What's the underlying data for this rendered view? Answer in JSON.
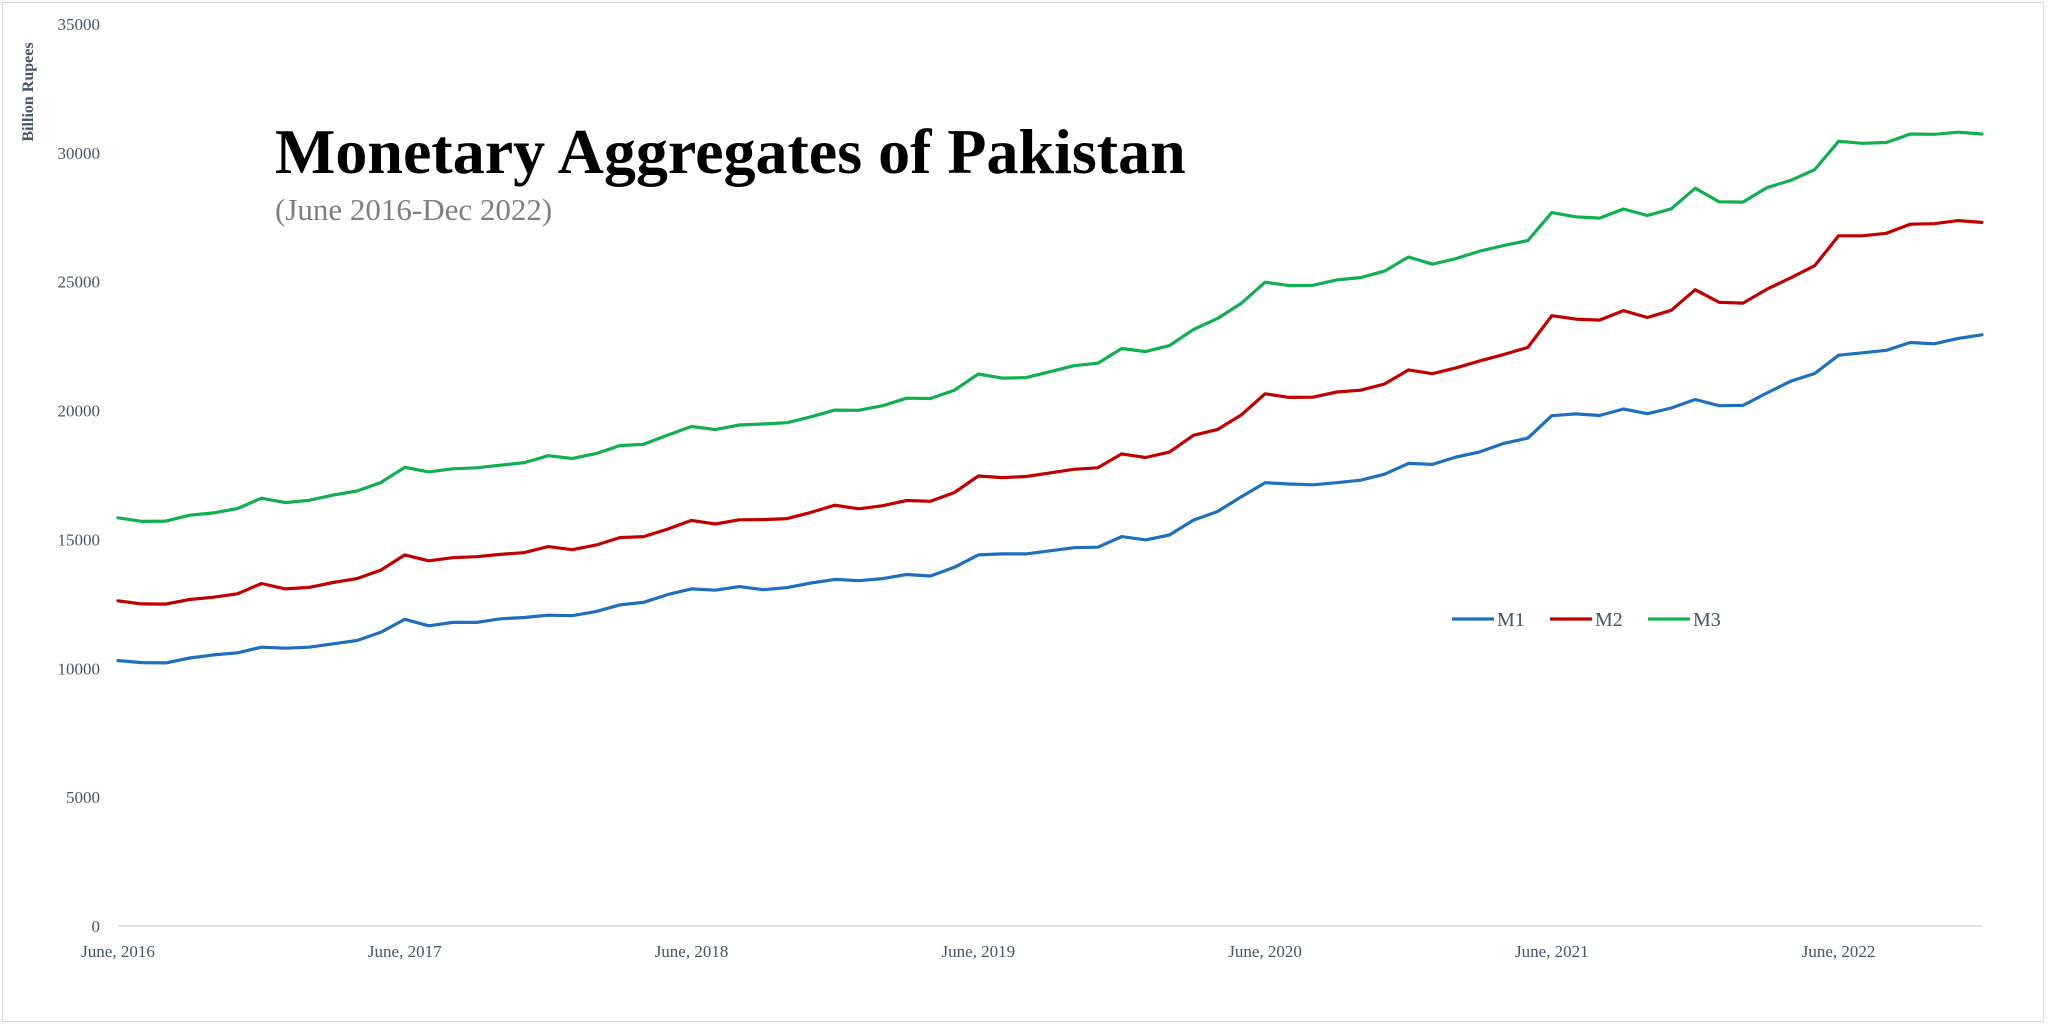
{
  "chart_data": {
    "type": "line",
    "title": "Monetary Aggregates of Pakistan",
    "subtitle": "(June 2016-Dec 2022)",
    "xlabel": "",
    "ylabel": "Billion Rupees",
    "ylim": [
      0,
      35000
    ],
    "yticks": [
      0,
      5000,
      10000,
      15000,
      20000,
      25000,
      30000,
      35000
    ],
    "xtick_labels": [
      "June, 2016",
      "June, 2017",
      "June, 2018",
      "June, 2019",
      "June, 2020",
      "June, 2021",
      "June, 2022"
    ],
    "x_start": "June, 2016",
    "x_end": "Dec, 2022",
    "frequency": "monthly",
    "grid": false,
    "legend_position": "center-right",
    "colors": {
      "M1": "#1f6fbf",
      "M2": "#c00000",
      "M3": "#10b050"
    },
    "series": [
      {
        "name": "M1",
        "values": [
          10300,
          10220,
          10210,
          10400,
          10520,
          10600,
          10820,
          10780,
          10820,
          10950,
          11080,
          11400,
          11900,
          11650,
          11780,
          11780,
          11920,
          11970,
          12060,
          12040,
          12200,
          12460,
          12560,
          12860,
          13080,
          13030,
          13170,
          13050,
          13130,
          13310,
          13450,
          13400,
          13480,
          13640,
          13580,
          13920,
          14400,
          14440,
          14440,
          14560,
          14680,
          14700,
          15110,
          14980,
          15170,
          15750,
          16080,
          16650,
          17200,
          17150,
          17120,
          17200,
          17300,
          17530,
          17950,
          17910,
          18200,
          18400,
          18730,
          18930,
          19800,
          19870,
          19810,
          20060,
          19880,
          20100,
          20430,
          20190,
          20200,
          20680,
          21140,
          21440,
          22150,
          22240,
          22340,
          22640,
          22590,
          22800,
          22940
        ]
      },
      {
        "name": "M2",
        "values": [
          12620,
          12500,
          12490,
          12670,
          12760,
          12890,
          13290,
          13080,
          13140,
          13330,
          13480,
          13810,
          14400,
          14170,
          14290,
          14330,
          14420,
          14490,
          14720,
          14600,
          14780,
          15070,
          15110,
          15400,
          15740,
          15600,
          15760,
          15770,
          15810,
          16050,
          16330,
          16190,
          16310,
          16510,
          16480,
          16820,
          17460,
          17400,
          17440,
          17580,
          17720,
          17780,
          18320,
          18180,
          18390,
          19040,
          19260,
          19830,
          20650,
          20510,
          20520,
          20720,
          20790,
          21030,
          21580,
          21430,
          21660,
          21930,
          22180,
          22450,
          23680,
          23550,
          23510,
          23880,
          23610,
          23890,
          24690,
          24200,
          24170,
          24710,
          25150,
          25620,
          26780,
          26780,
          26880,
          27230,
          27250,
          27370,
          27300
        ]
      },
      {
        "name": "M3",
        "values": [
          15840,
          15700,
          15710,
          15940,
          16030,
          16200,
          16600,
          16430,
          16520,
          16720,
          16880,
          17210,
          17800,
          17620,
          17740,
          17780,
          17880,
          17980,
          18250,
          18140,
          18330,
          18640,
          18690,
          19050,
          19380,
          19260,
          19440,
          19480,
          19530,
          19760,
          20020,
          20010,
          20190,
          20480,
          20470,
          20790,
          21420,
          21260,
          21280,
          21510,
          21740,
          21840,
          22410,
          22290,
          22520,
          23140,
          23570,
          24160,
          24980,
          24850,
          24860,
          25070,
          25160,
          25410,
          25960,
          25680,
          25900,
          26190,
          26410,
          26600,
          27680,
          27520,
          27470,
          27820,
          27570,
          27830,
          28630,
          28100,
          28090,
          28650,
          28930,
          29350,
          30450,
          30370,
          30400,
          30730,
          30720,
          30800,
          30730
        ]
      }
    ]
  }
}
